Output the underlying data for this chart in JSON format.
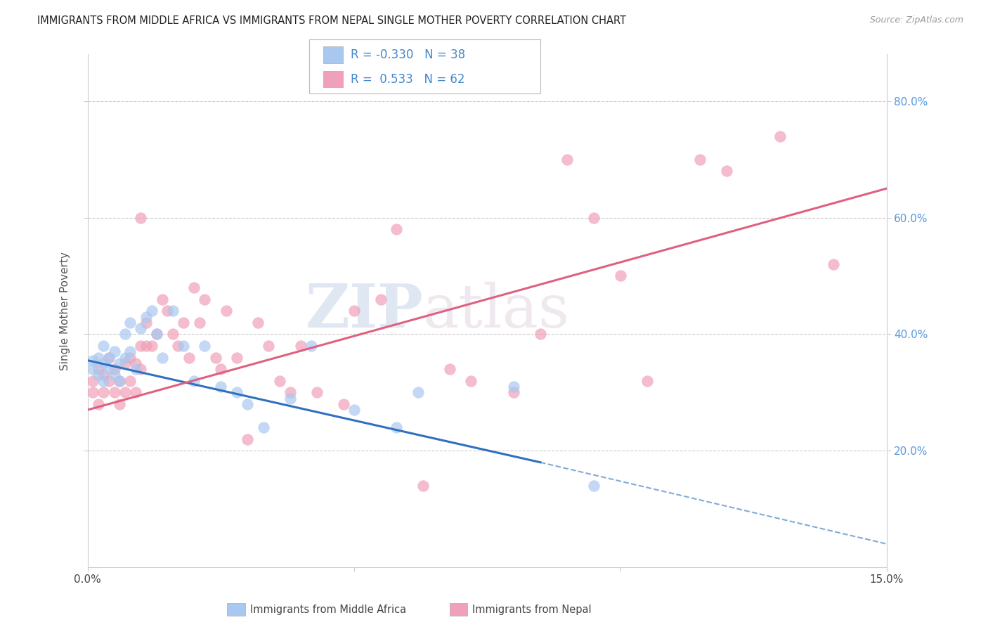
{
  "title": "IMMIGRANTS FROM MIDDLE AFRICA VS IMMIGRANTS FROM NEPAL SINGLE MOTHER POVERTY CORRELATION CHART",
  "source": "Source: ZipAtlas.com",
  "ylabel": "Single Mother Poverty",
  "right_yticks": [
    "80.0%",
    "60.0%",
    "40.0%",
    "20.0%"
  ],
  "right_ytick_vals": [
    0.8,
    0.6,
    0.4,
    0.2
  ],
  "xlim": [
    0.0,
    0.15
  ],
  "ylim": [
    0.0,
    0.88
  ],
  "blue_R": -0.33,
  "blue_N": 38,
  "pink_R": 0.533,
  "pink_N": 62,
  "blue_color": "#A8C8F0",
  "pink_color": "#F0A0B8",
  "blue_line_color": "#3070C0",
  "pink_line_color": "#E06080",
  "blue_label": "Immigrants from Middle Africa",
  "pink_label": "Immigrants from Nepal",
  "watermark_zip": "ZIP",
  "watermark_atlas": "atlas",
  "blue_line_x0": 0.0,
  "blue_line_y0": 0.355,
  "blue_line_x1": 0.085,
  "blue_line_y1": 0.18,
  "blue_line_dash_x1": 0.15,
  "blue_line_dash_y1": 0.04,
  "pink_line_x0": 0.0,
  "pink_line_y0": 0.27,
  "pink_line_x1": 0.15,
  "pink_line_y1": 0.65,
  "blue_scatter_x": [
    0.001,
    0.001,
    0.002,
    0.002,
    0.003,
    0.003,
    0.003,
    0.004,
    0.004,
    0.005,
    0.005,
    0.006,
    0.006,
    0.007,
    0.007,
    0.008,
    0.008,
    0.009,
    0.01,
    0.011,
    0.012,
    0.013,
    0.014,
    0.016,
    0.018,
    0.02,
    0.022,
    0.025,
    0.028,
    0.03,
    0.033,
    0.038,
    0.042,
    0.05,
    0.058,
    0.062,
    0.08,
    0.095
  ],
  "blue_scatter_y": [
    0.355,
    0.34,
    0.36,
    0.33,
    0.35,
    0.32,
    0.38,
    0.36,
    0.34,
    0.33,
    0.37,
    0.35,
    0.32,
    0.4,
    0.36,
    0.42,
    0.37,
    0.34,
    0.41,
    0.43,
    0.44,
    0.4,
    0.36,
    0.44,
    0.38,
    0.32,
    0.38,
    0.31,
    0.3,
    0.28,
    0.24,
    0.29,
    0.38,
    0.27,
    0.24,
    0.3,
    0.31,
    0.14
  ],
  "pink_scatter_x": [
    0.001,
    0.001,
    0.002,
    0.002,
    0.003,
    0.003,
    0.004,
    0.004,
    0.005,
    0.005,
    0.006,
    0.006,
    0.007,
    0.007,
    0.008,
    0.008,
    0.009,
    0.009,
    0.01,
    0.01,
    0.011,
    0.011,
    0.012,
    0.013,
    0.014,
    0.015,
    0.016,
    0.017,
    0.018,
    0.019,
    0.02,
    0.021,
    0.022,
    0.024,
    0.025,
    0.026,
    0.028,
    0.03,
    0.032,
    0.034,
    0.036,
    0.038,
    0.04,
    0.043,
    0.048,
    0.05,
    0.055,
    0.058,
    0.063,
    0.068,
    0.072,
    0.08,
    0.085,
    0.09,
    0.095,
    0.1,
    0.105,
    0.115,
    0.12,
    0.13,
    0.14,
    0.01
  ],
  "pink_scatter_y": [
    0.3,
    0.32,
    0.28,
    0.34,
    0.33,
    0.3,
    0.36,
    0.32,
    0.34,
    0.3,
    0.32,
    0.28,
    0.35,
    0.3,
    0.36,
    0.32,
    0.3,
    0.35,
    0.38,
    0.34,
    0.42,
    0.38,
    0.38,
    0.4,
    0.46,
    0.44,
    0.4,
    0.38,
    0.42,
    0.36,
    0.48,
    0.42,
    0.46,
    0.36,
    0.34,
    0.44,
    0.36,
    0.22,
    0.42,
    0.38,
    0.32,
    0.3,
    0.38,
    0.3,
    0.28,
    0.44,
    0.46,
    0.58,
    0.14,
    0.34,
    0.32,
    0.3,
    0.4,
    0.7,
    0.6,
    0.5,
    0.32,
    0.7,
    0.68,
    0.74,
    0.52,
    0.6
  ]
}
